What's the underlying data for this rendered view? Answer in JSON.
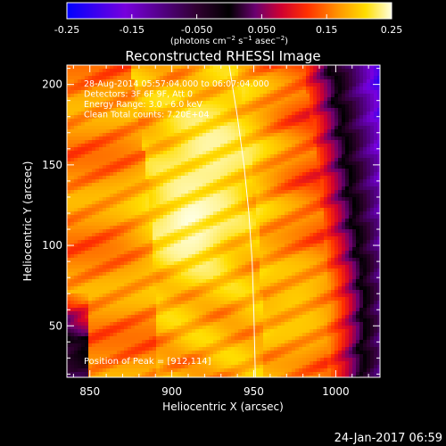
{
  "chart_data": {
    "type": "heatmap",
    "title": "Reconstructed RHESSI Image",
    "xlabel": "Heliocentric X (arcsec)",
    "ylabel": "Heliocentric Y (arcsec)",
    "xlim": [
      836,
      1027
    ],
    "ylim": [
      18,
      212
    ],
    "x_ticks": [
      850,
      900,
      950,
      1000
    ],
    "y_ticks": [
      50,
      100,
      150,
      200
    ],
    "colorbar": {
      "ticks": [
        -0.25,
        -0.15,
        -0.05,
        0.05,
        0.15,
        0.25
      ],
      "tick_labels": [
        "-0.25",
        "-0.15",
        "-0.050",
        "0.050",
        "0.15",
        "0.25"
      ],
      "range": [
        -0.25,
        0.25
      ],
      "units_label": "(photons cm-2 s-1 asec-2)",
      "colormap": [
        {
          "v": -0.25,
          "c": "#0000ff"
        },
        {
          "v": -0.16,
          "c": "#7700dd"
        },
        {
          "v": -0.05,
          "c": "#300030"
        },
        {
          "v": 0.0,
          "c": "#000000"
        },
        {
          "v": 0.04,
          "c": "#6a0070"
        },
        {
          "v": 0.08,
          "c": "#d00030"
        },
        {
          "v": 0.12,
          "c": "#ff3000"
        },
        {
          "v": 0.17,
          "c": "#ff9900"
        },
        {
          "v": 0.21,
          "c": "#ffdd00"
        },
        {
          "v": 0.25,
          "c": "#ffffe0"
        }
      ]
    },
    "annotations": [
      "28-Aug-2014 05:57:04.000 to 06:07:04.000",
      "Detectors: 3F 6F 9F, Att 0",
      "Energy Range: 3.0 - 6.0 keV",
      "Clean    Total counts: 7.20E+04"
    ],
    "peak_label": "Position of Peak = [912,114]",
    "peak": {
      "x": 912,
      "y": 114,
      "value": 0.25
    },
    "secondary_peaks": [
      {
        "x": 924,
        "y": 160,
        "value": 0.24
      },
      {
        "x": 976,
        "y": 62,
        "value": 0.2
      }
    ],
    "limb_curve": [
      [
        935,
        212
      ],
      [
        940,
        180
      ],
      [
        944,
        150
      ],
      [
        947,
        120
      ],
      [
        949,
        90
      ],
      [
        950,
        60
      ],
      [
        951,
        18
      ]
    ],
    "grid": false
  },
  "footer": {
    "timestamp": "24-Jan-2017 06:59"
  }
}
